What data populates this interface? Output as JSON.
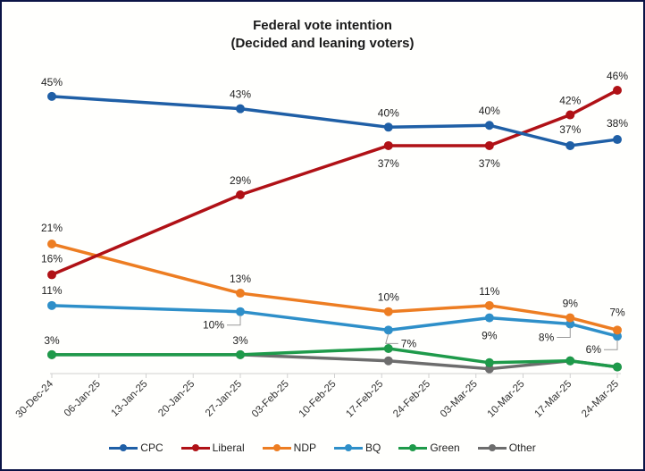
{
  "chart_data": {
    "type": "line",
    "title": "Federal vote intention",
    "subtitle": "(Decided and leaning voters)",
    "xlabel": "",
    "ylabel": "",
    "x_axis": {
      "type": "date",
      "range": [
        "30-Dec-24",
        "24-Mar-25"
      ],
      "tick_labels": [
        "30-Dec-24",
        "06-Jan-25",
        "13-Jan-25",
        "20-Jan-25",
        "27-Jan-25",
        "03-Feb-25",
        "10-Feb-25",
        "17-Feb-25",
        "24-Feb-25",
        "03-Mar-25",
        "10-Mar-25",
        "17-Mar-25",
        "24-Mar-25"
      ]
    },
    "x_days": [
      0,
      28,
      50,
      65,
      77,
      84
    ],
    "x": [
      "30-Dec-24",
      "27-Jan-25",
      "18-Feb-25",
      "05-Mar-25",
      "17-Mar-25",
      "24-Mar-25"
    ],
    "ylim": [
      0,
      50
    ],
    "grid": false,
    "legend_position": "bottom",
    "series": [
      {
        "name": "CPC",
        "color": "#1f5fa6",
        "values": [
          45,
          43,
          40,
          40.3,
          37,
          38
        ],
        "labels": [
          "45%",
          "43%",
          "40%",
          "40%",
          "37%",
          "38%"
        ],
        "label_pos": [
          "above",
          "above",
          "above",
          "above",
          "above",
          "above"
        ]
      },
      {
        "name": "Liberal",
        "color": "#b01116",
        "values": [
          16,
          29,
          37,
          37,
          42,
          46
        ],
        "labels": [
          "16%",
          "29%",
          "37%",
          "37%",
          "42%",
          "46%"
        ],
        "label_pos": [
          "above",
          "above",
          "below",
          "below",
          "above",
          "above"
        ]
      },
      {
        "name": "NDP",
        "color": "#ed7d22",
        "values": [
          21,
          13,
          10,
          11,
          9,
          7
        ],
        "labels": [
          "21%",
          "13%",
          "10%",
          "11%",
          "9%",
          "7%"
        ],
        "label_pos": [
          "above",
          "above",
          "above",
          "above",
          "above",
          "above"
        ]
      },
      {
        "name": "BQ",
        "color": "#2e8fc9",
        "values": [
          11,
          10,
          7,
          9,
          8,
          6
        ],
        "labels": [
          "11%",
          "10%",
          "7%",
          "9%",
          "8%",
          "6%"
        ],
        "label_pos": [
          "above",
          "below-left",
          "below-right",
          "below",
          "below-left",
          "below-left"
        ]
      },
      {
        "name": "Green",
        "color": "#1e9a4a",
        "values": [
          3,
          3,
          4,
          1.7,
          2,
          1
        ],
        "labels": [
          "",
          "",
          "",
          "",
          "",
          ""
        ],
        "label_pos": []
      },
      {
        "name": "Other",
        "color": "#6d6d6d",
        "values": [
          3,
          3,
          2,
          0.7,
          2,
          1
        ],
        "labels": [
          "3%",
          "3%",
          "",
          "",
          "",
          ""
        ],
        "label_pos": [
          "above",
          "above"
        ]
      }
    ]
  }
}
